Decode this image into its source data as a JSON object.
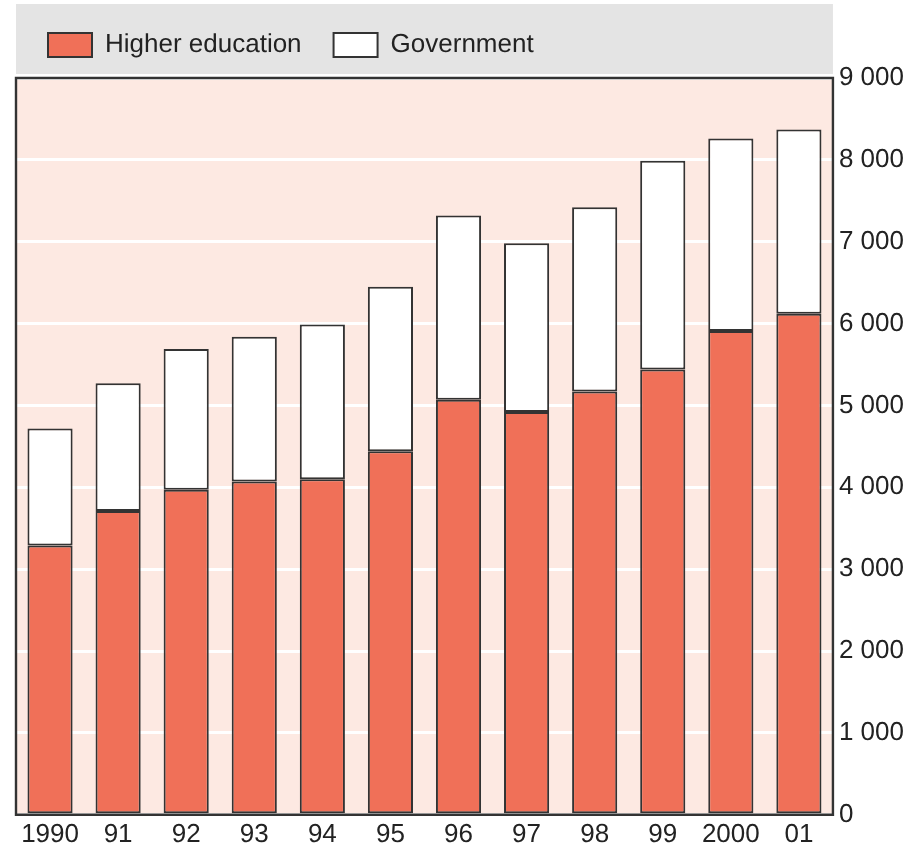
{
  "chart_data": {
    "type": "bar",
    "stacked": true,
    "legend": "top",
    "grid": "y",
    "categories": [
      "1990",
      "91",
      "92",
      "93",
      "94",
      "95",
      "96",
      "97",
      "98",
      "99",
      "2000",
      "01"
    ],
    "series": [
      {
        "name": "Higher education",
        "color": "#f07058",
        "values": [
          3290,
          3710,
          3970,
          4070,
          4100,
          4440,
          5070,
          4920,
          5170,
          5440,
          5910,
          6120
        ]
      },
      {
        "name": "Government",
        "color": "#ffffff",
        "values": [
          1430,
          1560,
          1720,
          1770,
          1890,
          2010,
          2250,
          2060,
          2250,
          2550,
          2350,
          2250
        ]
      }
    ],
    "ylim": [
      0,
      9000
    ],
    "yticks": [
      {
        "value": 0,
        "label": "0"
      },
      {
        "value": 1000,
        "label": "1 000"
      },
      {
        "value": 2000,
        "label": "2 000"
      },
      {
        "value": 3000,
        "label": "3 000"
      },
      {
        "value": 4000,
        "label": "4 000"
      },
      {
        "value": 5000,
        "label": "5 000"
      },
      {
        "value": 6000,
        "label": "6 000"
      },
      {
        "value": 7000,
        "label": "7 000"
      },
      {
        "value": 8000,
        "label": "8 000"
      },
      {
        "value": 9000,
        "label": "9 000"
      }
    ]
  }
}
